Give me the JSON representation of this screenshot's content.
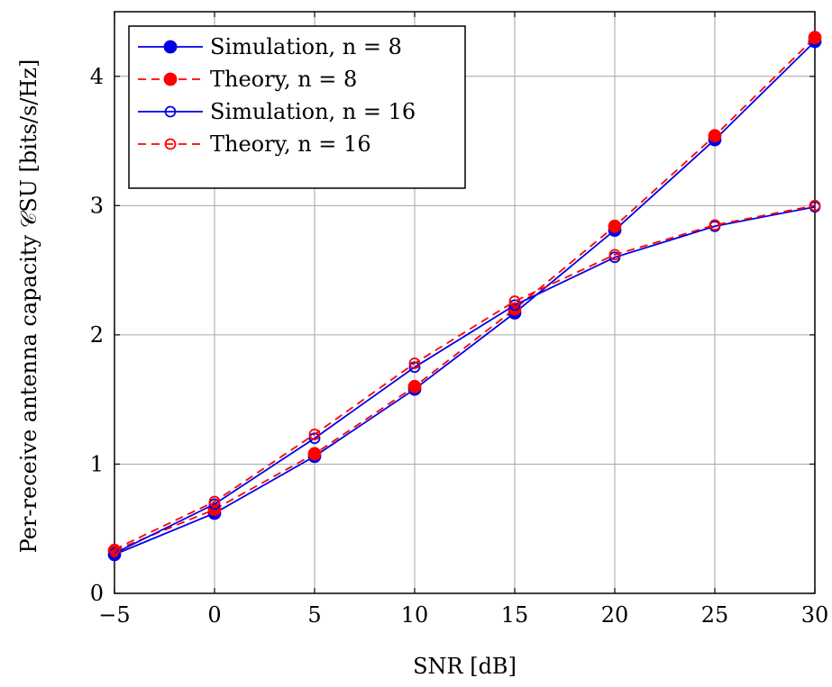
{
  "chart_data": {
    "type": "line",
    "title": "",
    "xlabel": "SNR [dB]",
    "ylabel": "Per-receive antenna capacity 𝒞SU [bits/s/Hz]",
    "xlim": [
      -5,
      30
    ],
    "ylim": [
      0,
      4.5
    ],
    "x_ticks": [
      "−5",
      "0",
      "5",
      "10",
      "15",
      "20",
      "25",
      "30"
    ],
    "y_ticks": [
      "0",
      "1",
      "2",
      "3",
      "4"
    ],
    "grid": true,
    "legend_position": "top-left",
    "x": [
      -5,
      0,
      5,
      10,
      15,
      20,
      25,
      30
    ],
    "series": [
      {
        "name": "Simulation, n = 8",
        "color": "#0000e6",
        "line_style": "solid",
        "marker": "filled-circle",
        "values": [
          0.3,
          0.62,
          1.06,
          1.58,
          2.17,
          2.81,
          3.51,
          4.27
        ]
      },
      {
        "name": "Theory, n = 8",
        "color": "#ff0000",
        "line_style": "dashed",
        "marker": "filled-circle",
        "values": [
          0.33,
          0.65,
          1.08,
          1.6,
          2.2,
          2.84,
          3.54,
          4.3
        ]
      },
      {
        "name": "Simulation, n = 16",
        "color": "#0000e6",
        "line_style": "solid",
        "marker": "open-circle",
        "values": [
          0.31,
          0.69,
          1.2,
          1.75,
          2.23,
          2.6,
          2.84,
          2.99
        ]
      },
      {
        "name": "Theory, n = 16",
        "color": "#ff0000",
        "line_style": "dashed",
        "marker": "open-circle",
        "values": [
          0.34,
          0.71,
          1.23,
          1.78,
          2.26,
          2.62,
          2.85,
          3.0
        ]
      }
    ]
  }
}
